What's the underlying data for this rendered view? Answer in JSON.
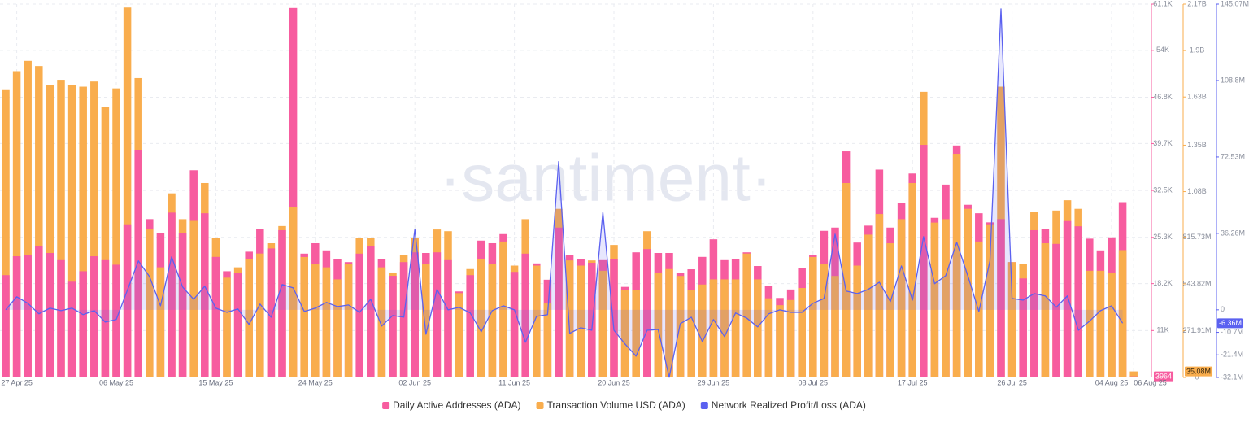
{
  "chart_data": {
    "type": "bar",
    "watermark": "·santiment·",
    "grid": true,
    "legend": "bottom",
    "categories": [
      null,
      "27 Apr 25",
      null,
      null,
      null,
      null,
      null,
      null,
      null,
      null,
      "06 May 25",
      null,
      null,
      null,
      null,
      null,
      null,
      null,
      null,
      "15 May 25",
      null,
      null,
      null,
      null,
      null,
      null,
      null,
      null,
      "24 May 25",
      null,
      null,
      null,
      null,
      null,
      null,
      null,
      null,
      "02 Jun 25",
      null,
      null,
      null,
      null,
      null,
      null,
      null,
      null,
      "11 Jun 25",
      null,
      null,
      null,
      null,
      null,
      null,
      null,
      null,
      "20 Jun 25",
      null,
      null,
      null,
      null,
      null,
      null,
      null,
      null,
      "29 Jun 25",
      null,
      null,
      null,
      null,
      null,
      null,
      null,
      null,
      "08 Jul 25",
      null,
      null,
      null,
      null,
      null,
      null,
      null,
      null,
      "17 Jul 25",
      null,
      null,
      null,
      null,
      null,
      null,
      null,
      null,
      "26 Jul 25",
      null,
      null,
      null,
      null,
      null,
      null,
      null,
      null,
      "04 Aug 25",
      null,
      "06 Aug 25"
    ],
    "series": [
      {
        "name": "Daily Active Addresses (ADA)",
        "color": "#f75c9f",
        "axis": "y",
        "current_label": "3964",
        "values": [
          19500,
          22400,
          22600,
          23900,
          22900,
          21800,
          18500,
          20100,
          22400,
          21800,
          21100,
          27300,
          38700,
          28100,
          26000,
          29100,
          25900,
          35600,
          29000,
          22300,
          20100,
          19800,
          23100,
          26600,
          23600,
          26400,
          60500,
          22800,
          24400,
          23300,
          22000,
          21500,
          22800,
          24000,
          22000,
          19400,
          21500,
          23000,
          22900,
          23000,
          21800,
          17000,
          19500,
          24800,
          24400,
          25800,
          20000,
          22800,
          21300,
          18800,
          26800,
          22600,
          22000,
          21400,
          21800,
          21900,
          17700,
          23000,
          23500,
          22900,
          22900,
          19900,
          20400,
          22300,
          25000,
          21800,
          22000,
          23000,
          20900,
          17900,
          16000,
          17300,
          20600,
          22600,
          26300,
          26800,
          38500,
          24500,
          27100,
          35700,
          26800,
          30600,
          35100,
          39500,
          28300,
          33400,
          39400,
          30300,
          29000,
          27600,
          28100,
          21500,
          19000,
          26400,
          26600,
          24300,
          27800,
          27000,
          25100,
          23300,
          25300,
          30700,
          3964
        ]
      },
      {
        "name": "Transaction Volume USD (ADA)",
        "color": "#f9ad4d",
        "axis": "y2",
        "current_label": "35.08M",
        "values": [
          1670000000.0,
          1780000000.0,
          1840000000.0,
          1810000000.0,
          1700000000.0,
          1730000000.0,
          1700000000.0,
          1690000000.0,
          1720000000.0,
          1570000000.0,
          1680000000.0,
          2150000000.0,
          1740000000.0,
          860000000.0,
          640000000.0,
          1070000000.0,
          920000000.0,
          910000000.0,
          1130000000.0,
          810000000.0,
          580000000.0,
          640000000.0,
          690000000.0,
          720000000.0,
          780000000.0,
          880000000.0,
          990000000.0,
          700000000.0,
          660000000.0,
          640000000.0,
          570000000.0,
          660000000.0,
          810000000.0,
          810000000.0,
          640000000.0,
          610000000.0,
          710000000.0,
          810000000.0,
          660000000.0,
          860000000.0,
          850000000.0,
          490000000.0,
          630000000.0,
          690000000.0,
          660000000.0,
          790000000.0,
          650000000.0,
          920000000.0,
          650000000.0,
          430000000.0,
          980000000.0,
          680000000.0,
          650000000.0,
          680000000.0,
          620000000.0,
          770000000.0,
          510000000.0,
          510000000.0,
          850000000.0,
          610000000.0,
          630000000.0,
          590000000.0,
          510000000.0,
          540000000.0,
          570000000.0,
          570000000.0,
          570000000.0,
          720000000.0,
          570000000.0,
          460000000.0,
          420000000.0,
          450000000.0,
          520000000.0,
          700000000.0,
          660000000.0,
          590000000.0,
          1130000000.0,
          650000000.0,
          830000000.0,
          950000000.0,
          780000000.0,
          920000000.0,
          1130000000.0,
          1660000000.0,
          900000000.0,
          920000000.0,
          1300000000.0,
          980000000.0,
          790000000.0,
          890000000.0,
          1690000000.0,
          670000000.0,
          660000000.0,
          960000000.0,
          780000000.0,
          970000000.0,
          1030000000.0,
          980000000.0,
          620000000.0,
          620000000.0,
          610000000.0,
          740000000.0,
          35080000
        ]
      },
      {
        "name": "Network Realized Profit/Loss (ADA)",
        "color": "#5b61f0",
        "axis": "y3",
        "type": "line",
        "current_label": "-6.36M",
        "values": [
          0,
          6200000.0,
          3100000.0,
          -1900000.0,
          800000.0,
          -400000.0,
          800000.0,
          -2300000.0,
          -400000.0,
          -5800000.0,
          -4600000.0,
          9300000.0,
          23200000.0,
          15800000.0,
          1900000.0,
          25100000.0,
          10800000.0,
          5000000.0,
          11200000.0,
          800000.0,
          -1200000.0,
          400000.0,
          -6900000.0,
          2700000.0,
          -3500000.0,
          12000000.0,
          10400000.0,
          -800000.0,
          800000.0,
          3500000.0,
          1500000.0,
          2300000.0,
          -1200000.0,
          5000000.0,
          -7700000.0,
          -2700000.0,
          -3500000.0,
          38200000.0,
          -11600000.0,
          9700000.0,
          0,
          1200000.0,
          -1500000.0,
          -10400000.0,
          -400000.0,
          1900000.0,
          0,
          -15400000.0,
          -3100000.0,
          -2300000.0,
          70300000.0,
          -11200000.0,
          -8500000.0,
          -9700000.0,
          46300000.0,
          -9700000.0,
          -16200000.0,
          -22000000.0,
          -9700000.0,
          -9300000.0,
          -32000000.0,
          -6600000.0,
          -3500000.0,
          -15100000.0,
          -4600000.0,
          -12700000.0,
          -1500000.0,
          -3900000.0,
          -8100000.0,
          -1900000.0,
          0,
          -1200000.0,
          -1200000.0,
          3100000.0,
          5400000.0,
          35900000.0,
          8900000.0,
          7700000.0,
          9700000.0,
          13100000.0,
          3900000.0,
          20800000.0,
          4600000.0,
          34700000.0,
          12400000.0,
          16200000.0,
          32000000.0,
          16200000.0,
          -800000.0,
          23200000.0,
          142800000.0,
          5400000.0,
          4600000.0,
          7700000.0,
          6600000.0,
          1200000.0,
          6600000.0,
          -9700000.0,
          -5400000.0,
          -400000.0,
          1900000.0,
          -6360000.0,
          null
        ]
      }
    ],
    "ylim": [
      3800,
      61100
    ],
    "yticks": [
      {
        "value": 11000,
        "label": "11K"
      },
      {
        "value": 18200,
        "label": "18.2K"
      },
      {
        "value": 25300,
        "label": "25.3K"
      },
      {
        "value": 32500,
        "label": "32.5K"
      },
      {
        "value": 39700,
        "label": "39.7K"
      },
      {
        "value": 46800,
        "label": "46.8K"
      },
      {
        "value": 54000,
        "label": "54K"
      },
      {
        "value": 61100,
        "label": "61.1K"
      }
    ],
    "y2lim": [
      0,
      2170000000.0
    ],
    "y2ticks": [
      0,
      {
        "value": 271910000,
        "label": "271.91M"
      },
      {
        "value": 543820000,
        "label": "543.82M"
      },
      {
        "value": 815730000,
        "label": "815.73M"
      },
      {
        "value": 1080000000.0,
        "label": "1.08B"
      },
      {
        "value": 1350000000.0,
        "label": "1.35B"
      },
      {
        "value": 1630000000.0,
        "label": "1.63B"
      },
      {
        "value": 1900000000.0,
        "label": "1.9B"
      },
      {
        "value": 2170000000.0,
        "label": "2.17B"
      }
    ],
    "y3lim": [
      -32100000,
      145070000
    ],
    "y3ticks": [
      {
        "value": -32100000,
        "label": "-32.1M"
      },
      {
        "value": -21400000,
        "label": "-21.4M"
      },
      {
        "value": -10700000,
        "label": "-10.7M"
      },
      0,
      {
        "value": 36260000,
        "label": "36.26M"
      },
      {
        "value": 72530000,
        "label": "72.53M"
      },
      {
        "value": 108800000,
        "label": "108.8M"
      },
      {
        "value": 145070000,
        "label": "145.07M"
      }
    ]
  }
}
